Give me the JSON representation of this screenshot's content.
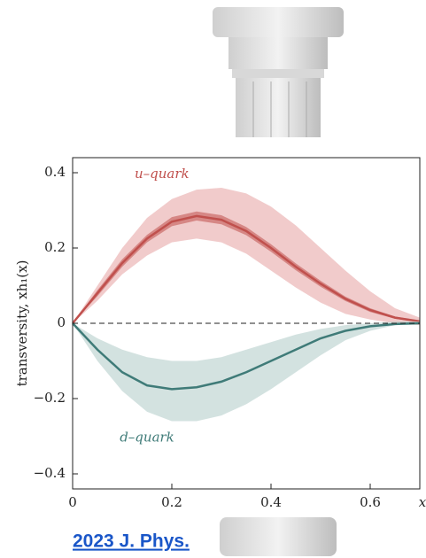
{
  "chart_data": {
    "type": "band_line",
    "ylabel": "transversity, xh₁(x)",
    "xlabel": "x",
    "link": "2023 J. Phys.",
    "x": [
      0,
      0.05,
      0.1,
      0.15,
      0.2,
      0.25,
      0.3,
      0.35,
      0.4,
      0.45,
      0.5,
      0.55,
      0.6,
      0.65,
      0.7
    ],
    "series": [
      {
        "name": "u–quark",
        "color": "#c0504d",
        "band_color": "#e8a9a8",
        "values": [
          0,
          0.08,
          0.16,
          0.225,
          0.27,
          0.285,
          0.275,
          0.245,
          0.2,
          0.15,
          0.105,
          0.065,
          0.035,
          0.015,
          0.005
        ],
        "upper": [
          0,
          0.1,
          0.2,
          0.28,
          0.33,
          0.355,
          0.36,
          0.345,
          0.31,
          0.26,
          0.2,
          0.14,
          0.085,
          0.04,
          0.015
        ],
        "lower": [
          0,
          0.06,
          0.13,
          0.18,
          0.215,
          0.225,
          0.215,
          0.185,
          0.14,
          0.095,
          0.055,
          0.025,
          0.01,
          0,
          -0.005
        ],
        "inner_upper": [
          0,
          0.088,
          0.17,
          0.235,
          0.282,
          0.297,
          0.287,
          0.256,
          0.21,
          0.159,
          0.113,
          0.071,
          0.04,
          0.018,
          0.007
        ],
        "inner_lower": [
          0,
          0.072,
          0.15,
          0.215,
          0.258,
          0.273,
          0.263,
          0.234,
          0.19,
          0.141,
          0.097,
          0.059,
          0.03,
          0.012,
          0.003
        ]
      },
      {
        "name": "d–quark",
        "color": "#3f7b78",
        "band_color": "#b5cfcc",
        "values": [
          0,
          -0.07,
          -0.13,
          -0.165,
          -0.175,
          -0.17,
          -0.155,
          -0.13,
          -0.1,
          -0.07,
          -0.04,
          -0.02,
          -0.008,
          -0.002,
          0
        ],
        "upper": [
          0,
          -0.04,
          -0.07,
          -0.09,
          -0.1,
          -0.1,
          -0.09,
          -0.07,
          -0.05,
          -0.03,
          -0.015,
          -0.005,
          0,
          0.005,
          0.005
        ],
        "lower": [
          0,
          -0.1,
          -0.18,
          -0.235,
          -0.26,
          -0.26,
          -0.245,
          -0.215,
          -0.175,
          -0.13,
          -0.085,
          -0.045,
          -0.02,
          -0.005,
          0
        ]
      }
    ],
    "xlim": [
      0,
      0.7
    ],
    "ylim": [
      -0.44,
      0.44
    ],
    "xticks": [
      0,
      0.2,
      0.4,
      0.6
    ],
    "yticks": [
      {
        "value": 0.4,
        "label": "0.4"
      },
      {
        "value": 0.2,
        "label": "0.2"
      },
      0,
      {
        "value": -0.2,
        "label": "−0.2"
      },
      {
        "value": -0.4,
        "label": "−0.4"
      }
    ]
  }
}
